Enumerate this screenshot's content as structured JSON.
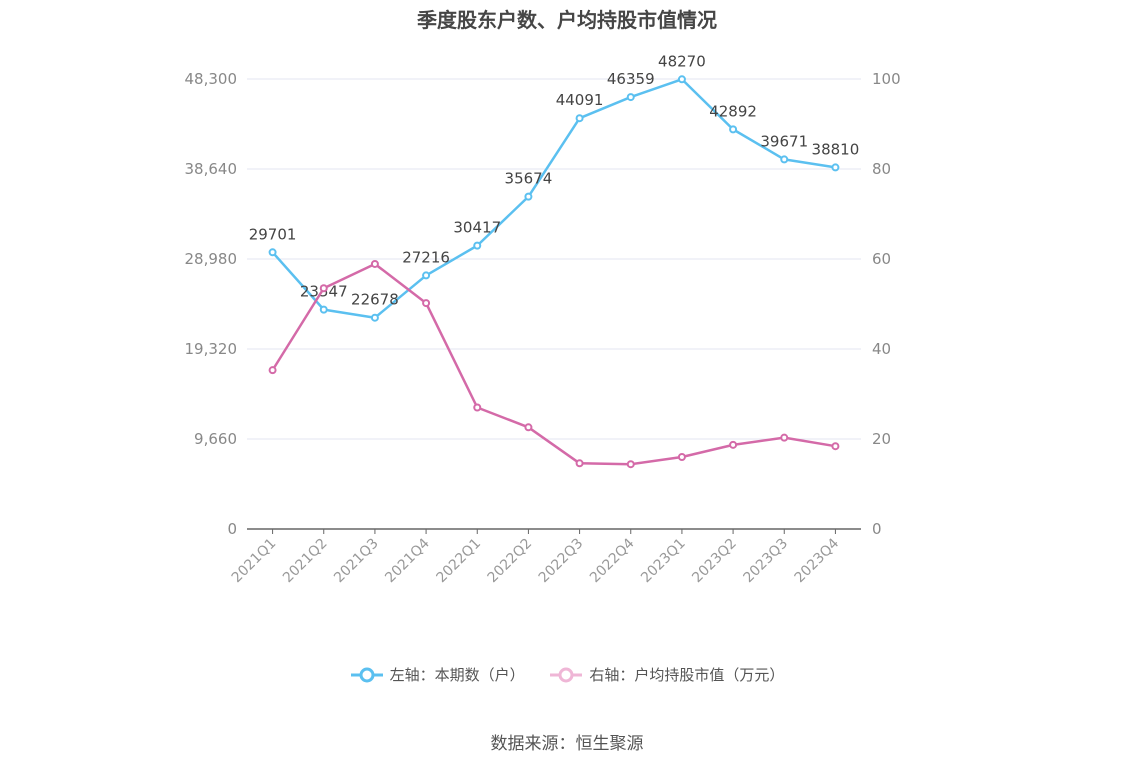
{
  "chart_data": {
    "type": "line",
    "title": "季度股东户数、户均持股市值情况",
    "categories": [
      "2021Q1",
      "2021Q2",
      "2021Q3",
      "2021Q4",
      "2022Q1",
      "2022Q2",
      "2022Q3",
      "2022Q4",
      "2023Q1",
      "2023Q2",
      "2023Q3",
      "2023Q4"
    ],
    "left_axis": {
      "ticks": [
        "0",
        "9,660",
        "19,320",
        "28,980",
        "38,640",
        "48,300"
      ],
      "ylim": [
        0,
        48300
      ]
    },
    "right_axis": {
      "ticks": [
        "0",
        "20",
        "40",
        "60",
        "80",
        "100"
      ],
      "ylim": [
        0,
        100
      ]
    },
    "series": [
      {
        "name": "左轴：本期数（户）",
        "axis": "left",
        "color": "#5bc0f0",
        "values": [
          29701,
          23547,
          22678,
          27216,
          30417,
          35674,
          44091,
          46359,
          48270,
          42892,
          39671,
          38810
        ],
        "labels": [
          "29701",
          "23547",
          "22678",
          "27216",
          "30417",
          "35674",
          "44091",
          "46359",
          "48270",
          "42892",
          "39671",
          "38810"
        ]
      },
      {
        "name": "右轴：户均持股市值（万元）",
        "axis": "right",
        "color": "#d46aa8",
        "values": [
          35.3,
          53.5,
          58.9,
          50.2,
          27.0,
          22.6,
          14.6,
          14.4,
          16.0,
          18.7,
          20.3,
          18.4
        ]
      }
    ],
    "grid": true,
    "legend_position": "bottom"
  },
  "source": "数据来源：恒生聚源"
}
